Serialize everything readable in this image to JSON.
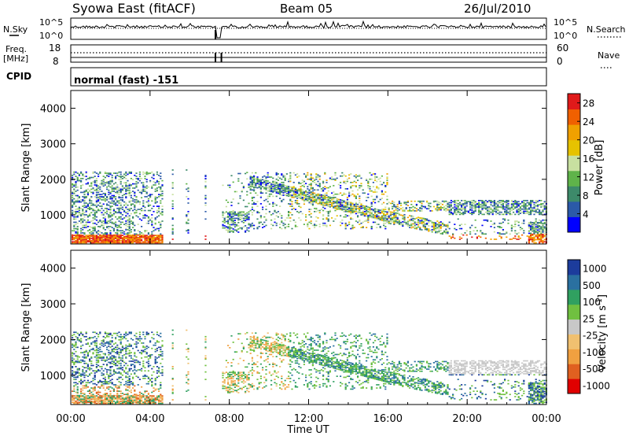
{
  "header": {
    "station": "Syowa East (fitACF)",
    "beam": "Beam 05",
    "date": "26/Jul/2010"
  },
  "noise_panel": {
    "left_label": "N.Sky",
    "right_label": "N.Search",
    "tick_top": "10^5",
    "tick_bottom": "10^0"
  },
  "freq_panel": {
    "left_label": "Freq.",
    "left_unit": "[MHz]",
    "left_ticks": [
      "18",
      "8"
    ],
    "right_label": "Nave",
    "right_ticks": [
      "60",
      "0"
    ]
  },
  "cpid": {
    "label": "CPID",
    "value": "normal (fast) -151"
  },
  "colors": {
    "power_scale": [
      "#0000ff",
      "#2b5aa8",
      "#3d8a6a",
      "#5fb34a",
      "#c8e0a0",
      "#e6c200",
      "#f0a000",
      "#f06000",
      "#e01a1a"
    ],
    "velocity_scale": [
      "#e00000",
      "#e06020",
      "#f0a040",
      "#f0c070",
      "#c8c8c8",
      "#70c040",
      "#30a060",
      "#2a70a0",
      "#1c3c9c"
    ]
  },
  "chart_data": [
    {
      "type": "heatmap",
      "xlabel": "",
      "ylabel": "Slant Range [km]",
      "ylim": [
        180,
        4500
      ],
      "yticks": [
        "1000",
        "2000",
        "3000",
        "4000"
      ],
      "xlim": [
        "00:00",
        "24:00"
      ],
      "colorbar_label": "Power [dB]",
      "colorbar_ticks": [
        "4",
        "8",
        "12",
        "16",
        "20",
        "24",
        "28"
      ],
      "colorbar_range": [
        0,
        30
      ],
      "data_gap_hours": [
        [
          4.6,
          7.6
        ]
      ]
    },
    {
      "type": "heatmap",
      "xlabel": "Time UT",
      "ylabel": "Slant Range [km]",
      "ylim": [
        180,
        4500
      ],
      "yticks": [
        "1000",
        "2000",
        "3000",
        "4000"
      ],
      "xticks": [
        "00:00",
        "04:00",
        "08:00",
        "12:00",
        "16:00",
        "20:00",
        "00:00"
      ],
      "xlim": [
        "00:00",
        "24:00"
      ],
      "colorbar_label": "Velocity [m s^-1]",
      "colorbar_ticks": [
        "1000",
        "500",
        "100",
        "25",
        "-25",
        "-100",
        "-500",
        "-1000"
      ],
      "colorbar_range": [
        -1000,
        1000
      ]
    }
  ]
}
